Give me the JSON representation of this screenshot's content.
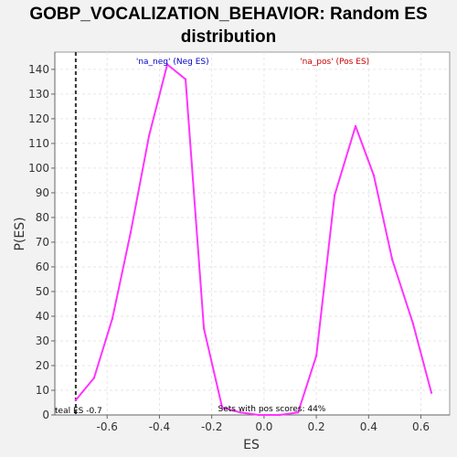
{
  "chart_data": {
    "type": "line",
    "title_line1": "GOBP_VOCALIZATION_BEHAVIOR: Random ES",
    "title_line2": "distribution",
    "xlabel": "ES",
    "ylabel": "P(ES)",
    "xlim": [
      -0.8,
      0.71
    ],
    "ylim": [
      0,
      147
    ],
    "x_ticks": [
      "-0.6",
      "-0.4",
      "-0.2",
      "0.0",
      "0.2",
      "0.4",
      "0.6"
    ],
    "x_tick_values": [
      -0.6,
      -0.4,
      -0.2,
      0.0,
      0.2,
      0.4,
      0.6
    ],
    "y_ticks": [
      "0",
      "10",
      "20",
      "30",
      "40",
      "50",
      "60",
      "70",
      "80",
      "90",
      "100",
      "110",
      "120",
      "130",
      "140"
    ],
    "y_tick_values": [
      0,
      10,
      20,
      30,
      40,
      50,
      60,
      70,
      80,
      90,
      100,
      110,
      120,
      130,
      140
    ],
    "grid": true,
    "series": [
      {
        "color": "#ff33ff",
        "x": [
          -0.72,
          -0.65,
          -0.58,
          -0.51,
          -0.44,
          -0.37,
          -0.3,
          -0.23,
          -0.16,
          -0.09,
          -0.02,
          0.06,
          0.13,
          0.2,
          0.27,
          0.35,
          0.42,
          0.49,
          0.57,
          0.64
        ],
        "y": [
          6,
          15,
          39,
          74,
          113,
          142,
          136,
          35,
          3,
          1,
          0,
          0,
          1,
          24,
          89,
          117,
          97,
          63,
          37,
          9
        ]
      }
    ],
    "real_es": -0.72,
    "annotations": {
      "neg_label": "'na_neg' (Neg ES)",
      "neg_color": "#0000cc",
      "pos_label": "'na_pos' (Pos ES)",
      "pos_color": "#cc0000",
      "real_es_label": "teal ES -0.7",
      "pos_scores_label": "Sets with pos scores: 44%"
    }
  }
}
